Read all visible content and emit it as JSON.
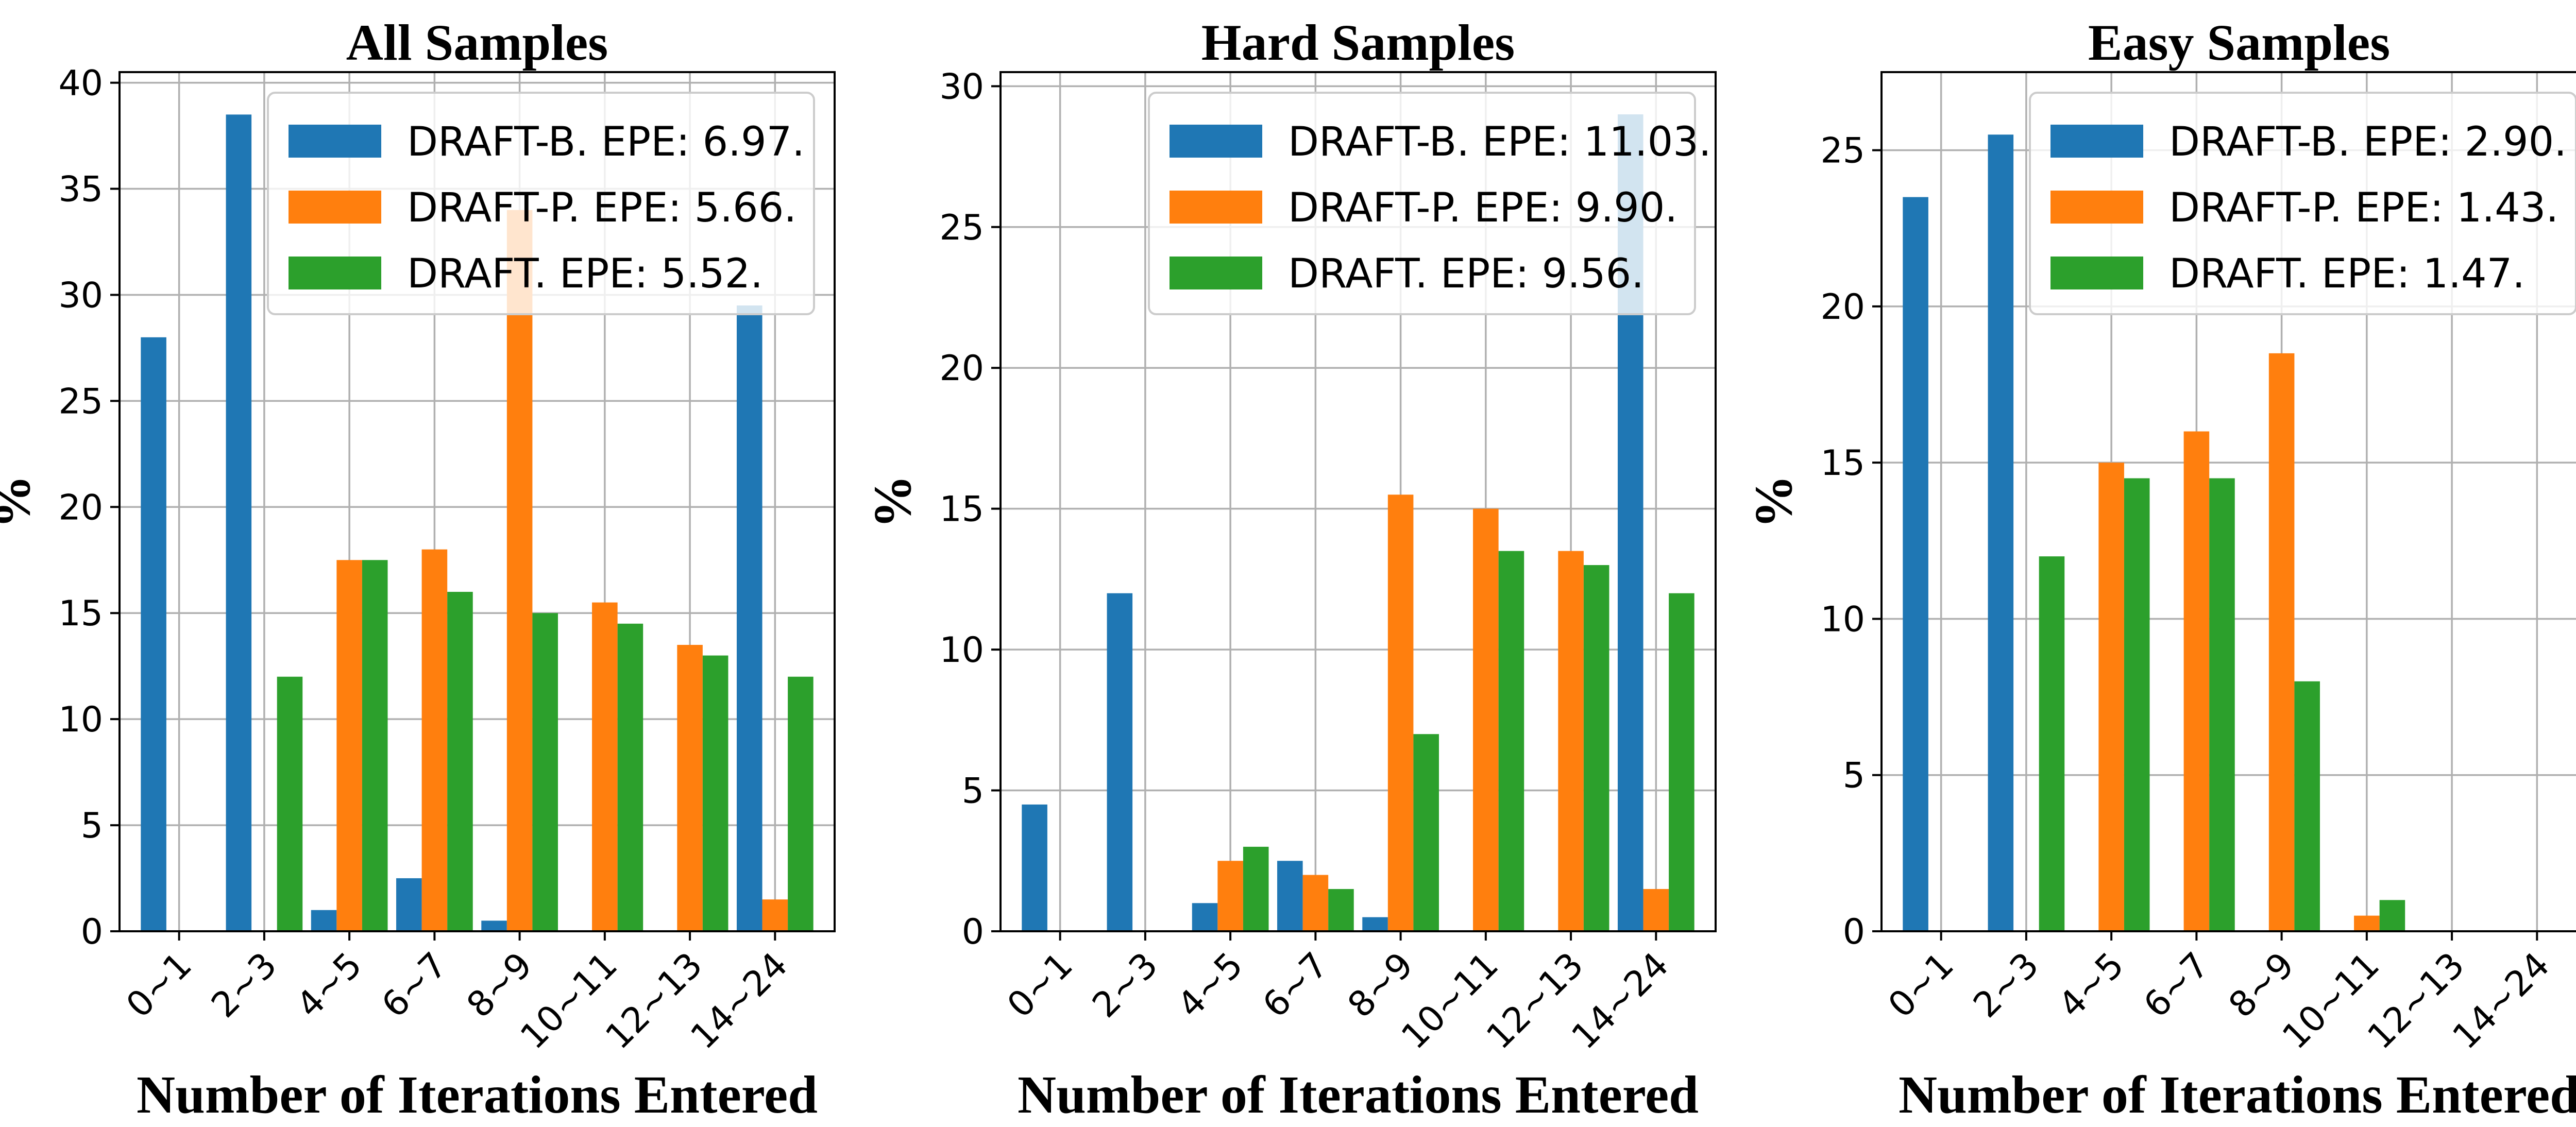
{
  "colors": {
    "DRAFT-B": "#1f77b4",
    "DRAFT-P": "#ff7f0e",
    "DRAFT": "#2ca02c"
  },
  "chart_data": [
    {
      "type": "bar",
      "title": "All Samples",
      "xlabel": "Number of Iterations Entered",
      "ylabel": "%",
      "categories": [
        "0~1",
        "2~3",
        "4~5",
        "6~7",
        "8~9",
        "10~11",
        "12~13",
        "14~24"
      ],
      "ylim": [
        0,
        40.5
      ],
      "yticks": [
        0,
        5,
        10,
        15,
        20,
        25,
        30,
        35,
        40
      ],
      "grid": true,
      "legend_position": "top-right",
      "series": [
        {
          "name": "DRAFT-B",
          "legend": "DRAFT-B. EPE: 6.97.",
          "values": [
            28,
            38.5,
            1,
            2.5,
            0.5,
            0,
            0,
            29.5
          ]
        },
        {
          "name": "DRAFT-P",
          "legend": "DRAFT-P. EPE: 5.66.",
          "values": [
            0,
            0,
            17.5,
            18,
            34,
            15.5,
            13.5,
            1.5
          ]
        },
        {
          "name": "DRAFT",
          "legend": "DRAFT. EPE: 5.52.",
          "values": [
            0,
            12,
            17.5,
            16,
            15,
            14.5,
            13,
            12
          ]
        }
      ]
    },
    {
      "type": "bar",
      "title": "Hard Samples",
      "xlabel": "Number of Iterations Entered",
      "ylabel": "%",
      "categories": [
        "0~1",
        "2~3",
        "4~5",
        "6~7",
        "8~9",
        "10~11",
        "12~13",
        "14~24"
      ],
      "ylim": [
        0,
        30.5
      ],
      "yticks": [
        0,
        5,
        10,
        15,
        20,
        25,
        30
      ],
      "grid": true,
      "legend_position": "top-right",
      "series": [
        {
          "name": "DRAFT-B",
          "legend": "DRAFT-B. EPE: 11.03.",
          "values": [
            4.5,
            12,
            1,
            2.5,
            0.5,
            0,
            0,
            29
          ]
        },
        {
          "name": "DRAFT-P",
          "legend": "DRAFT-P. EPE: 9.90.",
          "values": [
            0,
            0,
            2.5,
            2,
            15.5,
            15,
            13.5,
            1.5
          ]
        },
        {
          "name": "DRAFT",
          "legend": "DRAFT. EPE: 9.56.",
          "values": [
            0,
            0,
            3,
            1.5,
            7,
            13.5,
            13,
            12
          ]
        }
      ]
    },
    {
      "type": "bar",
      "title": "Easy Samples",
      "xlabel": "Number of Iterations Entered",
      "ylabel": "%",
      "categories": [
        "0~1",
        "2~3",
        "4~5",
        "6~7",
        "8~9",
        "10~11",
        "12~13",
        "14~24"
      ],
      "ylim": [
        0,
        27.5
      ],
      "yticks": [
        0,
        5,
        10,
        15,
        20,
        25
      ],
      "grid": true,
      "legend_position": "top-right",
      "series": [
        {
          "name": "DRAFT-B",
          "legend": "DRAFT-B. EPE: 2.90.",
          "values": [
            23.5,
            25.5,
            0,
            0,
            0,
            0,
            0,
            0
          ]
        },
        {
          "name": "DRAFT-P",
          "legend": "DRAFT-P. EPE: 1.43.",
          "values": [
            0,
            0,
            15,
            16,
            18.5,
            0.5,
            0,
            0
          ]
        },
        {
          "name": "DRAFT",
          "legend": "DRAFT. EPE: 1.47.",
          "values": [
            0,
            12,
            14.5,
            14.5,
            8,
            1,
            0,
            0
          ]
        }
      ]
    }
  ]
}
